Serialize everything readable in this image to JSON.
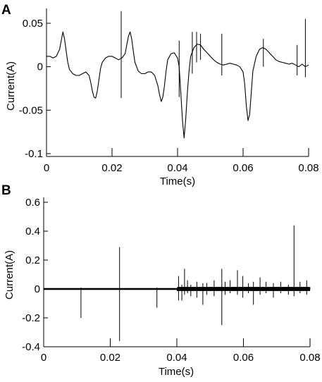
{
  "chart_data": [
    {
      "panel": "A",
      "type": "line",
      "xlabel": "Time(s)",
      "ylabel": "Current(A)",
      "xlim": [
        0,
        0.08
      ],
      "ylim": [
        -0.1,
        0.065
      ],
      "xticks": [
        0,
        0.02,
        0.04,
        0.06,
        0.08
      ],
      "xtick_labels": [
        "0",
        "0.02",
        "0.04",
        "0.06",
        "0.08"
      ],
      "yticks": [
        -0.1,
        -0.05,
        0,
        0.05
      ],
      "ytick_labels": [
        "-0.1",
        "-0.05",
        "0",
        "0.05"
      ],
      "grid": false,
      "series": [
        {
          "color": "#000000",
          "x": [
            0,
            0.001,
            0.002,
            0.003,
            0.004,
            0.0045,
            0.005,
            0.0055,
            0.006,
            0.0065,
            0.007,
            0.008,
            0.009,
            0.01,
            0.011,
            0.012,
            0.013,
            0.0135,
            0.014,
            0.0145,
            0.015,
            0.0155,
            0.016,
            0.0165,
            0.017,
            0.018,
            0.019,
            0.02,
            0.021,
            0.022,
            0.023,
            0.024,
            0.0245,
            0.025,
            0.0255,
            0.026,
            0.0265,
            0.027,
            0.028,
            0.029,
            0.03,
            0.031,
            0.032,
            0.033,
            0.034,
            0.0345,
            0.035,
            0.0355,
            0.036,
            0.0365,
            0.037,
            0.038,
            0.039,
            0.04,
            0.0405,
            0.041,
            0.0415,
            0.042,
            0.0425,
            0.043,
            0.0435,
            0.044,
            0.045,
            0.046,
            0.047,
            0.048,
            0.049,
            0.05,
            0.051,
            0.052,
            0.053,
            0.054,
            0.055,
            0.056,
            0.057,
            0.058,
            0.059,
            0.06,
            0.0605,
            0.061,
            0.0615,
            0.062,
            0.0625,
            0.063,
            0.064,
            0.065,
            0.066,
            0.067,
            0.068,
            0.069,
            0.07,
            0.071,
            0.072,
            0.073,
            0.074,
            0.075,
            0.076,
            0.077,
            0.078,
            0.079,
            0.08
          ],
          "y": [
            0.012,
            0.012,
            0.01,
            0.012,
            0.02,
            0.03,
            0.04,
            0.032,
            0.018,
            0.005,
            -0.003,
            -0.008,
            -0.01,
            -0.01,
            -0.008,
            -0.006,
            -0.01,
            -0.018,
            -0.028,
            -0.035,
            -0.036,
            -0.028,
            -0.015,
            -0.002,
            0.005,
            0.01,
            0.012,
            0.012,
            0.01,
            0.008,
            0.01,
            0.015,
            0.025,
            0.035,
            0.04,
            0.032,
            0.018,
            0.005,
            -0.005,
            -0.008,
            -0.008,
            -0.006,
            -0.006,
            -0.01,
            -0.022,
            -0.032,
            -0.04,
            -0.035,
            -0.022,
            -0.005,
            0.008,
            0.015,
            0.016,
            0.01,
            0.0,
            -0.03,
            -0.062,
            -0.082,
            -0.06,
            -0.03,
            -0.005,
            0.012,
            0.022,
            0.026,
            0.025,
            0.02,
            0.016,
            0.012,
            0.008,
            0.005,
            0.003,
            0.002,
            0.003,
            0.004,
            0.003,
            0.002,
            0.0,
            -0.006,
            -0.02,
            -0.045,
            -0.062,
            -0.055,
            -0.03,
            -0.005,
            0.012,
            0.02,
            0.022,
            0.02,
            0.016,
            0.012,
            0.008,
            0.006,
            0.005,
            0.004,
            0.003,
            0.004,
            0.002,
            0.0,
            0.003,
            0.0,
            0.002
          ]
        }
      ],
      "spikes": [
        {
          "x": 0.0228,
          "y1": 0.064,
          "y2": -0.036
        },
        {
          "x": 0.0405,
          "y1": 0.03,
          "y2": -0.035
        },
        {
          "x": 0.0445,
          "y1": 0.04,
          "y2": -0.008
        },
        {
          "x": 0.0458,
          "y1": 0.04,
          "y2": 0.005
        },
        {
          "x": 0.047,
          "y1": 0.038,
          "y2": 0.008
        },
        {
          "x": 0.0535,
          "y1": 0.038,
          "y2": -0.01
        },
        {
          "x": 0.0662,
          "y1": 0.032,
          "y2": 0.0
        },
        {
          "x": 0.0765,
          "y1": 0.025,
          "y2": -0.01
        },
        {
          "x": 0.079,
          "y1": 0.055,
          "y2": -0.012
        }
      ]
    },
    {
      "panel": "B",
      "type": "line",
      "xlabel": "Time(s)",
      "ylabel": "Current(A)",
      "xlim": [
        0,
        0.08
      ],
      "ylim": [
        -0.4,
        0.65
      ],
      "xticks": [
        0,
        0.02,
        0.04,
        0.06,
        0.08
      ],
      "xtick_labels": [
        "0",
        "0.02",
        "0.04",
        "0.06",
        "0.08"
      ],
      "yticks": [
        -0.4,
        -0.2,
        0,
        0.2,
        0.4,
        0.6
      ],
      "ytick_labels": [
        "-0.4",
        "-0.2",
        "0",
        "0.2",
        "0.4",
        "0.6"
      ],
      "grid": false,
      "series": [
        {
          "color": "#000000",
          "x": [
            0,
            0.04,
            0.0401,
            0.08
          ],
          "y": [
            0.0,
            0.0,
            0.0,
            0.0
          ]
        }
      ],
      "spikes": [
        {
          "x": 0.0112,
          "y1": 0.01,
          "y2": -0.2
        },
        {
          "x": 0.0228,
          "y1": 0.29,
          "y2": -0.36
        },
        {
          "x": 0.034,
          "y1": 0.01,
          "y2": -0.13
        },
        {
          "x": 0.0405,
          "y1": 0.09,
          "y2": -0.08
        },
        {
          "x": 0.0415,
          "y1": 0.03,
          "y2": -0.08
        },
        {
          "x": 0.0423,
          "y1": 0.14,
          "y2": -0.04
        },
        {
          "x": 0.0432,
          "y1": 0.06,
          "y2": -0.03
        },
        {
          "x": 0.0442,
          "y1": 0.03,
          "y2": -0.05
        },
        {
          "x": 0.046,
          "y1": 0.05,
          "y2": -0.06
        },
        {
          "x": 0.0478,
          "y1": 0.04,
          "y2": -0.11
        },
        {
          "x": 0.049,
          "y1": 0.04,
          "y2": -0.04
        },
        {
          "x": 0.0512,
          "y1": 0.06,
          "y2": -0.05
        },
        {
          "x": 0.0535,
          "y1": 0.14,
          "y2": -0.25
        },
        {
          "x": 0.0545,
          "y1": 0.05,
          "y2": -0.04
        },
        {
          "x": 0.056,
          "y1": 0.06,
          "y2": -0.03
        },
        {
          "x": 0.0582,
          "y1": 0.13,
          "y2": -0.04
        },
        {
          "x": 0.0598,
          "y1": 0.09,
          "y2": -0.06
        },
        {
          "x": 0.0615,
          "y1": 0.04,
          "y2": -0.03
        },
        {
          "x": 0.063,
          "y1": 0.05,
          "y2": -0.11
        },
        {
          "x": 0.065,
          "y1": 0.08,
          "y2": -0.04
        },
        {
          "x": 0.0668,
          "y1": 0.05,
          "y2": -0.03
        },
        {
          "x": 0.069,
          "y1": 0.04,
          "y2": -0.06
        },
        {
          "x": 0.0712,
          "y1": 0.05,
          "y2": -0.03
        },
        {
          "x": 0.0735,
          "y1": 0.03,
          "y2": -0.04
        },
        {
          "x": 0.0752,
          "y1": 0.44,
          "y2": -0.05
        },
        {
          "x": 0.077,
          "y1": 0.05,
          "y2": -0.03
        },
        {
          "x": 0.079,
          "y1": 0.06,
          "y2": -0.04
        }
      ]
    }
  ]
}
